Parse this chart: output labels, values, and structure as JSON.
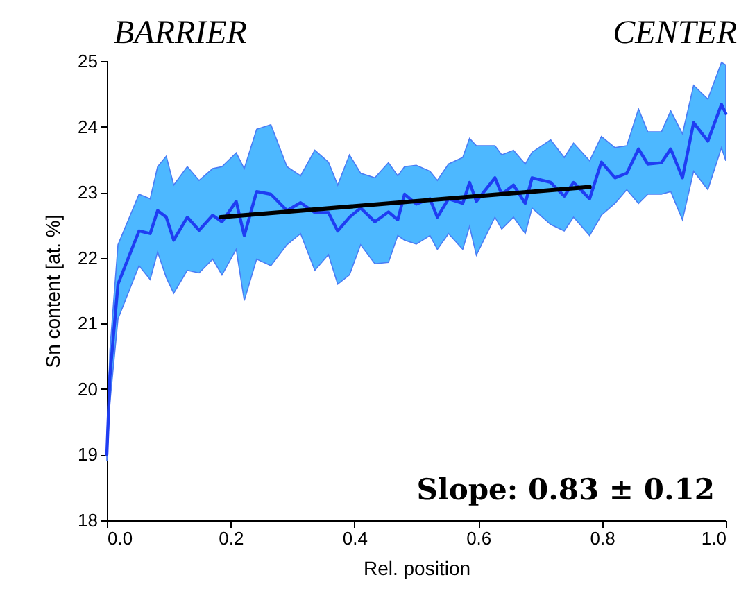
{
  "chart_data": {
    "type": "line",
    "xlabel": "Rel. position",
    "ylabel": "Sn content [at. %]",
    "xlim": [
      0,
      1
    ],
    "ylim": [
      18,
      25
    ],
    "xticks": [
      {
        "value": 0,
        "label": "0.0"
      },
      0.2,
      0.4,
      0.6,
      0.8,
      {
        "value": 1,
        "label": "1.0"
      }
    ],
    "yticks": [
      18,
      19,
      20,
      21,
      22,
      23,
      24,
      25
    ],
    "grid": false,
    "line_style": "solid",
    "annotations": [
      "BARRIER",
      "CENTER",
      "Slope: 0.83 ± 0.12"
    ],
    "series": [
      {
        "color": "#1f3df2",
        "x": [
          0,
          0.005,
          0.018,
          0.052,
          0.07,
          0.082,
          0.096,
          0.108,
          0.13,
          0.149,
          0.171,
          0.186,
          0.209,
          0.222,
          0.242,
          0.265,
          0.291,
          0.313,
          0.336,
          0.358,
          0.373,
          0.392,
          0.41,
          0.433,
          0.455,
          0.47,
          0.481,
          0.5,
          0.522,
          0.534,
          0.552,
          0.575,
          0.586,
          0.597,
          0.627,
          0.638,
          0.657,
          0.676,
          0.687,
          0.717,
          0.739,
          0.754,
          0.78,
          0.799,
          0.821,
          0.84,
          0.859,
          0.874,
          0.896,
          0.911,
          0.93,
          0.948,
          0.971,
          0.993,
          1.0
        ],
        "values": [
          19.0,
          20.2,
          21.6,
          22.41,
          22.37,
          22.72,
          22.62,
          22.27,
          22.62,
          22.42,
          22.65,
          22.55,
          22.86,
          22.34,
          23.01,
          22.97,
          22.72,
          22.84,
          22.69,
          22.69,
          22.41,
          22.62,
          22.76,
          22.55,
          22.7,
          22.58,
          22.97,
          22.82,
          22.9,
          22.62,
          22.9,
          22.83,
          23.15,
          22.86,
          23.22,
          22.97,
          23.11,
          22.83,
          23.22,
          23.15,
          22.94,
          23.15,
          22.9,
          23.46,
          23.22,
          23.29,
          23.66,
          23.43,
          23.45,
          23.66,
          23.22,
          24.06,
          23.78,
          24.34,
          24.2
        ],
        "lower": [
          18.9,
          19.8,
          21.07,
          21.88,
          21.67,
          22.09,
          21.7,
          21.46,
          21.81,
          21.77,
          21.98,
          21.74,
          22.13,
          21.35,
          21.98,
          21.88,
          22.2,
          22.37,
          21.81,
          22.05,
          21.6,
          21.74,
          22.2,
          21.91,
          21.93,
          22.34,
          22.27,
          22.21,
          22.34,
          22.13,
          22.37,
          22.13,
          22.48,
          22.04,
          22.62,
          22.44,
          22.62,
          22.37,
          22.76,
          22.51,
          22.41,
          22.62,
          22.34,
          22.65,
          22.83,
          23.04,
          22.83,
          22.97,
          22.97,
          23.01,
          22.58,
          23.32,
          23.04,
          23.68,
          23.48
        ],
        "upper": [
          19.2,
          20.6,
          22.2,
          22.97,
          22.9,
          23.39,
          23.55,
          23.11,
          23.39,
          23.18,
          23.36,
          23.39,
          23.6,
          23.36,
          23.96,
          24.03,
          23.39,
          23.25,
          23.64,
          23.46,
          23.11,
          23.57,
          23.29,
          23.22,
          23.45,
          23.25,
          23.39,
          23.41,
          23.32,
          23.18,
          23.43,
          23.53,
          23.82,
          23.71,
          23.71,
          23.57,
          23.64,
          23.43,
          23.61,
          23.8,
          23.53,
          23.75,
          23.48,
          23.85,
          23.68,
          23.71,
          24.27,
          23.92,
          23.92,
          24.24,
          23.89,
          24.63,
          24.42,
          24.98,
          24.94
        ]
      },
      {
        "color": "#000000",
        "x": [
          0.184,
          0.78
        ],
        "values": [
          22.62,
          23.08
        ]
      }
    ]
  }
}
